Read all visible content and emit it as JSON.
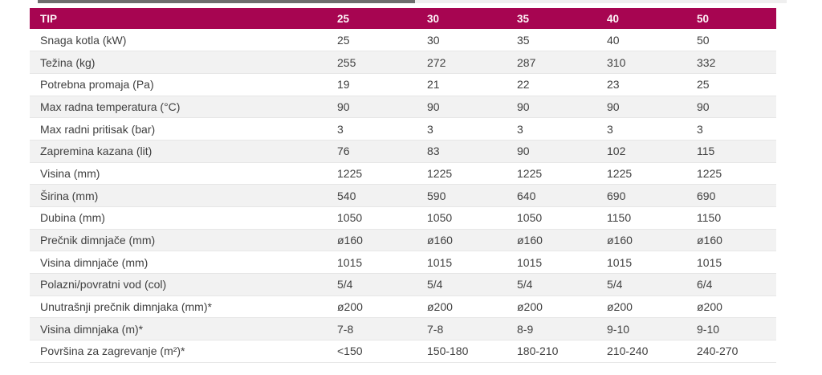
{
  "scrollbar": {
    "orientation": "horizontal",
    "thumb_color": "#6d6d6d",
    "track_color": "#efefef"
  },
  "colors": {
    "header_bg": "#a70551",
    "header_text": "#fdf3f7",
    "row_bg": "#ffffff",
    "row_alt_bg": "#f2f2f2",
    "row_border": "#e6e6e6",
    "body_text": "#404040"
  },
  "table": {
    "header": [
      "TIP",
      "25",
      "30",
      "35",
      "40",
      "50"
    ],
    "rows": [
      {
        "label": "Snaga kotla (kW)",
        "values": [
          "25",
          "30",
          "35",
          "40",
          "50"
        ]
      },
      {
        "label": "Težina (kg)",
        "values": [
          "255",
          "272",
          "287",
          "310",
          "332"
        ]
      },
      {
        "label": "Potrebna promaja (Pa)",
        "values": [
          "19",
          "21",
          "22",
          "23",
          "25"
        ]
      },
      {
        "label": "Max radna temperatura (°C)",
        "values": [
          "90",
          "90",
          "90",
          "90",
          "90"
        ]
      },
      {
        "label": "Max radni pritisak (bar)",
        "values": [
          "3",
          "3",
          "3",
          "3",
          "3"
        ]
      },
      {
        "label": "Zapremina kazana (lit)",
        "values": [
          "76",
          "83",
          "90",
          "102",
          "115"
        ]
      },
      {
        "label": "Visina (mm)",
        "values": [
          "1225",
          "1225",
          "1225",
          "1225",
          "1225"
        ]
      },
      {
        "label": "Širina (mm)",
        "values": [
          "540",
          "590",
          "640",
          "690",
          "690"
        ]
      },
      {
        "label": "Dubina (mm)",
        "values": [
          "1050",
          "1050",
          "1050",
          "1150",
          "1150"
        ]
      },
      {
        "label": "Prečnik dimnjače (mm)",
        "values": [
          "ø160",
          "ø160",
          "ø160",
          "ø160",
          "ø160"
        ]
      },
      {
        "label": "Visina dimnjače (mm)",
        "values": [
          "1015",
          "1015",
          "1015",
          "1015",
          "1015"
        ]
      },
      {
        "label": "Polazni/povratni vod (col)",
        "values": [
          "5/4",
          "5/4",
          "5/4",
          "5/4",
          "6/4"
        ]
      },
      {
        "label": "Unutrašnji prečnik dimnjaka (mm)*",
        "values": [
          "ø200",
          "ø200",
          "ø200",
          "ø200",
          "ø200"
        ]
      },
      {
        "label": "Visina dimnjaka (m)*",
        "values": [
          "7-8",
          "7-8",
          "8-9",
          "9-10",
          "9-10"
        ]
      },
      {
        "label": "Površina za zagrevanje (m²)*",
        "values": [
          "<150",
          "150-180",
          "180-210",
          "210-240",
          "240-270"
        ]
      }
    ]
  }
}
